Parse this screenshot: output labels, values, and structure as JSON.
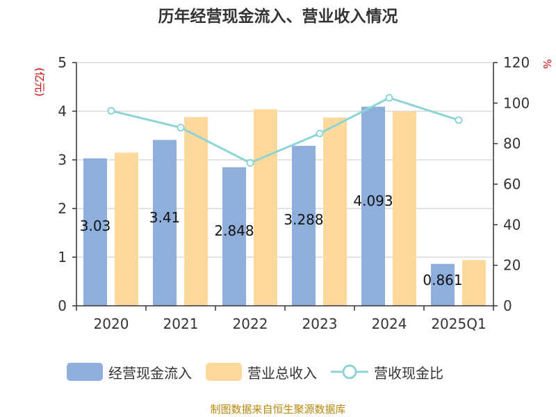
{
  "chart_data": {
    "type": "bar",
    "title": "历年经营现金流入、营业收入情况",
    "categories": [
      "2020",
      "2021",
      "2022",
      "2023",
      "2024",
      "2025Q1"
    ],
    "y_left_label": "(亿元)",
    "y_right_label": "%",
    "y_left_range": [
      0,
      5
    ],
    "y_right_range": [
      0,
      120
    ],
    "y_left_ticks": [
      "0",
      "1",
      "2",
      "3",
      "4",
      "5"
    ],
    "y_right_ticks": [
      "0",
      "20",
      "40",
      "60",
      "80",
      "100",
      "120"
    ],
    "grid": true,
    "legend_position": "bottom",
    "series": [
      {
        "name": "经营现金流入",
        "type": "bar",
        "axis": "left",
        "color": "#8eaedb",
        "values": [
          3.03,
          3.41,
          2.848,
          3.288,
          4.093,
          0.861
        ],
        "labels": [
          "3.03",
          "3.41",
          "2.848",
          "3.288",
          "4.093",
          "0.861"
        ]
      },
      {
        "name": "营业总收入",
        "type": "bar",
        "axis": "left",
        "color": "#fed99b",
        "values": [
          3.15,
          3.88,
          4.04,
          3.87,
          3.99,
          0.94
        ]
      },
      {
        "name": "营收现金比",
        "type": "line",
        "axis": "right",
        "color": "#8dd4d6",
        "values": [
          96.2,
          87.9,
          70.5,
          85.0,
          102.6,
          91.6
        ]
      }
    ]
  },
  "source": "制图数据来自恒生聚源数据库"
}
